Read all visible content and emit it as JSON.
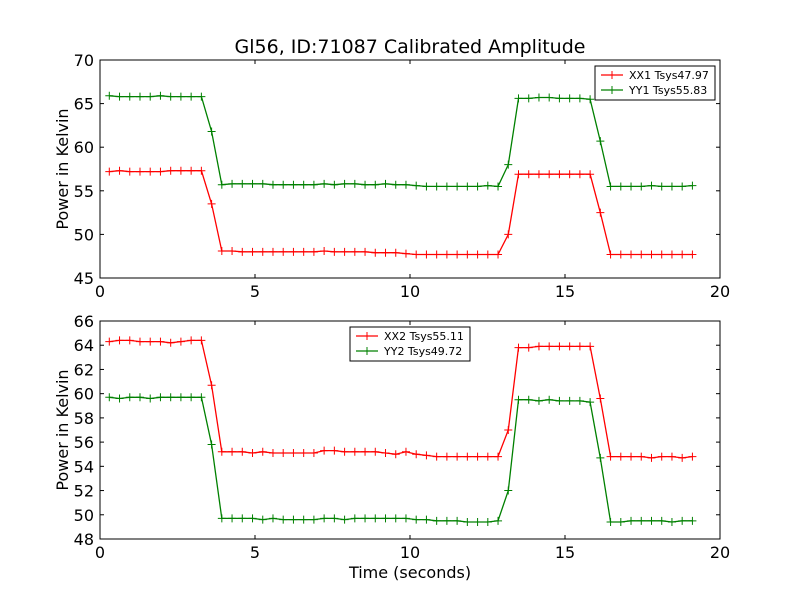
{
  "chart_data": [
    {
      "type": "line",
      "title": "Gl56, ID:71087 Calibrated Amplitude",
      "xlabel": "",
      "ylabel": "Power in Kelvin",
      "xlim": [
        0,
        20
      ],
      "ylim": [
        45,
        70
      ],
      "xticks": [
        "0",
        "5",
        "10",
        "15",
        "20"
      ],
      "yticks": [
        "45",
        "50",
        "55",
        "60",
        "65",
        "70"
      ],
      "legend_position": "top-right",
      "series": [
        {
          "name": "XX1 Tsys47.97",
          "color": "#ff0000",
          "x": [
            0.3,
            0.63,
            0.96,
            1.29,
            1.62,
            1.95,
            2.28,
            2.61,
            2.94,
            3.27,
            3.6,
            3.93,
            4.26,
            4.59,
            4.92,
            5.25,
            5.58,
            5.91,
            6.24,
            6.57,
            6.9,
            7.23,
            7.56,
            7.89,
            8.22,
            8.55,
            8.88,
            9.21,
            9.54,
            9.87,
            10.2,
            10.53,
            10.86,
            11.19,
            11.52,
            11.85,
            12.18,
            12.51,
            12.84,
            13.17,
            13.5,
            13.83,
            14.16,
            14.49,
            14.82,
            15.15,
            15.48,
            15.81,
            16.14,
            16.47,
            16.8,
            17.13,
            17.46,
            17.79,
            18.12,
            18.45,
            18.78,
            19.11
          ],
          "values": [
            57.2,
            57.3,
            57.2,
            57.2,
            57.2,
            57.2,
            57.3,
            57.3,
            57.3,
            57.3,
            53.5,
            48.1,
            48.1,
            48.0,
            48.0,
            48.0,
            48.0,
            48.0,
            48.0,
            48.0,
            48.0,
            48.1,
            48.0,
            48.0,
            48.0,
            48.0,
            47.9,
            47.9,
            47.9,
            47.8,
            47.7,
            47.7,
            47.7,
            47.7,
            47.7,
            47.7,
            47.7,
            47.7,
            47.7,
            50.0,
            56.9,
            56.9,
            56.9,
            56.9,
            56.9,
            56.9,
            56.9,
            56.9,
            52.5,
            47.7,
            47.7,
            47.7,
            47.7,
            47.7,
            47.7,
            47.7,
            47.7,
            47.7
          ]
        },
        {
          "name": "YY1 Tsys55.83",
          "color": "#008000",
          "x": [
            0.3,
            0.63,
            0.96,
            1.29,
            1.62,
            1.95,
            2.28,
            2.61,
            2.94,
            3.27,
            3.6,
            3.93,
            4.26,
            4.59,
            4.92,
            5.25,
            5.58,
            5.91,
            6.24,
            6.57,
            6.9,
            7.23,
            7.56,
            7.89,
            8.22,
            8.55,
            8.88,
            9.21,
            9.54,
            9.87,
            10.2,
            10.53,
            10.86,
            11.19,
            11.52,
            11.85,
            12.18,
            12.51,
            12.84,
            13.17,
            13.5,
            13.83,
            14.16,
            14.49,
            14.82,
            15.15,
            15.48,
            15.81,
            16.14,
            16.47,
            16.8,
            17.13,
            17.46,
            17.79,
            18.12,
            18.45,
            18.78,
            19.11
          ],
          "values": [
            65.9,
            65.8,
            65.8,
            65.8,
            65.8,
            65.9,
            65.8,
            65.8,
            65.8,
            65.8,
            61.8,
            55.7,
            55.8,
            55.8,
            55.8,
            55.8,
            55.7,
            55.7,
            55.7,
            55.7,
            55.7,
            55.8,
            55.7,
            55.8,
            55.8,
            55.7,
            55.7,
            55.8,
            55.7,
            55.7,
            55.6,
            55.5,
            55.5,
            55.5,
            55.5,
            55.5,
            55.5,
            55.6,
            55.5,
            58.0,
            65.6,
            65.6,
            65.7,
            65.7,
            65.6,
            65.6,
            65.6,
            65.5,
            60.7,
            55.5,
            55.5,
            55.5,
            55.5,
            55.6,
            55.5,
            55.5,
            55.5,
            55.6
          ]
        }
      ]
    },
    {
      "type": "line",
      "title": "",
      "xlabel": "Time (seconds)",
      "ylabel": "Power in Kelvin",
      "xlim": [
        0,
        20
      ],
      "ylim": [
        48,
        66
      ],
      "xticks": [
        "0",
        "5",
        "10",
        "15",
        "20"
      ],
      "yticks": [
        "48",
        "50",
        "52",
        "54",
        "56",
        "58",
        "60",
        "62",
        "64",
        "66"
      ],
      "legend_position": "top-center",
      "series": [
        {
          "name": "XX2 Tsys55.11",
          "color": "#ff0000",
          "x": [
            0.3,
            0.63,
            0.96,
            1.29,
            1.62,
            1.95,
            2.28,
            2.61,
            2.94,
            3.27,
            3.6,
            3.93,
            4.26,
            4.59,
            4.92,
            5.25,
            5.58,
            5.91,
            6.24,
            6.57,
            6.9,
            7.23,
            7.56,
            7.89,
            8.22,
            8.55,
            8.88,
            9.21,
            9.54,
            9.87,
            10.2,
            10.53,
            10.86,
            11.19,
            11.52,
            11.85,
            12.18,
            12.51,
            12.84,
            13.17,
            13.5,
            13.83,
            14.16,
            14.49,
            14.82,
            15.15,
            15.48,
            15.81,
            16.14,
            16.47,
            16.8,
            17.13,
            17.46,
            17.79,
            18.12,
            18.45,
            18.78,
            19.11
          ],
          "values": [
            64.3,
            64.4,
            64.4,
            64.3,
            64.3,
            64.3,
            64.2,
            64.3,
            64.4,
            64.4,
            60.7,
            55.2,
            55.2,
            55.2,
            55.1,
            55.2,
            55.1,
            55.1,
            55.1,
            55.1,
            55.1,
            55.3,
            55.3,
            55.2,
            55.2,
            55.2,
            55.2,
            55.1,
            55.0,
            55.2,
            55.0,
            54.9,
            54.8,
            54.8,
            54.8,
            54.8,
            54.8,
            54.8,
            54.8,
            57.0,
            63.8,
            63.8,
            63.9,
            63.9,
            63.9,
            63.9,
            63.9,
            63.9,
            59.6,
            54.8,
            54.8,
            54.8,
            54.8,
            54.7,
            54.8,
            54.8,
            54.7,
            54.8
          ]
        },
        {
          "name": "YY2 Tsys49.72",
          "color": "#008000",
          "x": [
            0.3,
            0.63,
            0.96,
            1.29,
            1.62,
            1.95,
            2.28,
            2.61,
            2.94,
            3.27,
            3.6,
            3.93,
            4.26,
            4.59,
            4.92,
            5.25,
            5.58,
            5.91,
            6.24,
            6.57,
            6.9,
            7.23,
            7.56,
            7.89,
            8.22,
            8.55,
            8.88,
            9.21,
            9.54,
            9.87,
            10.2,
            10.53,
            10.86,
            11.19,
            11.52,
            11.85,
            12.18,
            12.51,
            12.84,
            13.17,
            13.5,
            13.83,
            14.16,
            14.49,
            14.82,
            15.15,
            15.48,
            15.81,
            16.14,
            16.47,
            16.8,
            17.13,
            17.46,
            17.79,
            18.12,
            18.45,
            18.78,
            19.11
          ],
          "values": [
            59.7,
            59.6,
            59.7,
            59.7,
            59.6,
            59.7,
            59.7,
            59.7,
            59.7,
            59.7,
            55.8,
            49.7,
            49.7,
            49.7,
            49.7,
            49.6,
            49.7,
            49.6,
            49.6,
            49.6,
            49.6,
            49.7,
            49.7,
            49.6,
            49.7,
            49.7,
            49.7,
            49.7,
            49.7,
            49.7,
            49.6,
            49.6,
            49.5,
            49.5,
            49.5,
            49.4,
            49.4,
            49.4,
            49.5,
            52.0,
            59.5,
            59.5,
            59.4,
            59.5,
            59.4,
            59.4,
            59.4,
            59.3,
            54.7,
            49.4,
            49.4,
            49.5,
            49.5,
            49.5,
            49.5,
            49.4,
            49.5,
            49.5
          ]
        }
      ]
    }
  ]
}
